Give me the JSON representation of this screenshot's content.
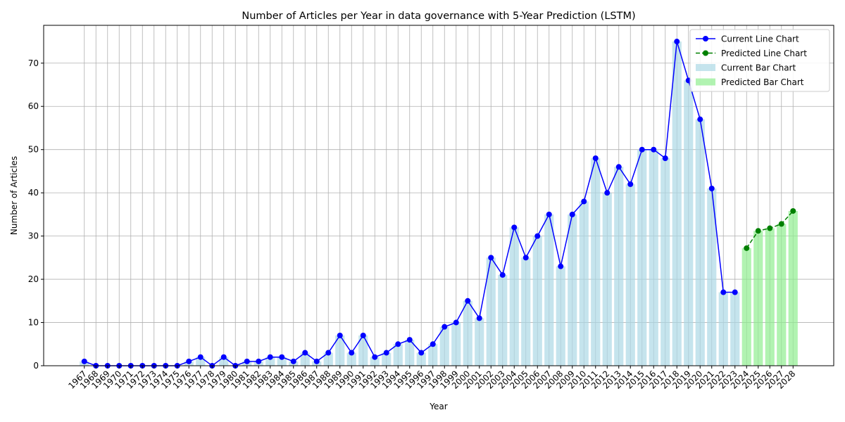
{
  "chart_data": {
    "type": "bar_line",
    "title": "Number of Articles per Year in data governance with 5-Year Prediction (LSTM)",
    "x_label": "Year",
    "y_label": "Number of Articles",
    "categories": [
      "1967",
      "1968",
      "1969",
      "1970",
      "1971",
      "1972",
      "1973",
      "1974",
      "1975",
      "1976",
      "1977",
      "1978",
      "1979",
      "1980",
      "1981",
      "1982",
      "1983",
      "1984",
      "1985",
      "1986",
      "1987",
      "1988",
      "1989",
      "1990",
      "1991",
      "1992",
      "1993",
      "1994",
      "1995",
      "1996",
      "1997",
      "1998",
      "1999",
      "2000",
      "2001",
      "2002",
      "2003",
      "2004",
      "2005",
      "2006",
      "2007",
      "2008",
      "2009",
      "2010",
      "2011",
      "2012",
      "2013",
      "2014",
      "2015",
      "2016",
      "2017",
      "2018",
      "2019",
      "2020",
      "2021",
      "2022",
      "2023",
      "2024",
      "2025",
      "2026",
      "2027",
      "2028"
    ],
    "series": [
      {
        "name": "Current Line Chart",
        "kind": "line",
        "color": "#0000ff",
        "dashed": false,
        "values": [
          1,
          0,
          0,
          0,
          0,
          0,
          0,
          0,
          0,
          1,
          2,
          0,
          2,
          0,
          1,
          1,
          2,
          2,
          1,
          3,
          1,
          3,
          7,
          3,
          7,
          2,
          3,
          5,
          6,
          3,
          5,
          9,
          10,
          15,
          11,
          25,
          21,
          32,
          25,
          30,
          35,
          23,
          35,
          38,
          48,
          40,
          46,
          42,
          50,
          50,
          48,
          75,
          66,
          57,
          41,
          17,
          17,
          null,
          null,
          null,
          null,
          null
        ]
      },
      {
        "name": "Predicted Line Chart",
        "kind": "line",
        "color": "#008000",
        "dashed": true,
        "values": [
          null,
          null,
          null,
          null,
          null,
          null,
          null,
          null,
          null,
          null,
          null,
          null,
          null,
          null,
          null,
          null,
          null,
          null,
          null,
          null,
          null,
          null,
          null,
          null,
          null,
          null,
          null,
          null,
          null,
          null,
          null,
          null,
          null,
          null,
          null,
          null,
          null,
          null,
          null,
          null,
          null,
          null,
          null,
          null,
          null,
          null,
          null,
          null,
          null,
          null,
          null,
          null,
          null,
          null,
          null,
          null,
          null,
          27.2,
          31.2,
          31.8,
          32.8,
          35.8
        ]
      },
      {
        "name": "Current Bar Chart",
        "kind": "bar",
        "color": "#add8e6",
        "values": [
          1,
          0,
          0,
          0,
          0,
          0,
          0,
          0,
          0,
          1,
          2,
          0,
          2,
          0,
          1,
          1,
          2,
          2,
          1,
          3,
          1,
          3,
          7,
          3,
          7,
          2,
          3,
          5,
          6,
          3,
          5,
          9,
          10,
          15,
          11,
          25,
          21,
          32,
          25,
          30,
          35,
          23,
          35,
          38,
          48,
          40,
          46,
          42,
          50,
          50,
          48,
          75,
          66,
          57,
          41,
          17,
          17,
          null,
          null,
          null,
          null,
          null
        ]
      },
      {
        "name": "Predicted Bar Chart",
        "kind": "bar",
        "color": "#90ee90",
        "values": [
          null,
          null,
          null,
          null,
          null,
          null,
          null,
          null,
          null,
          null,
          null,
          null,
          null,
          null,
          null,
          null,
          null,
          null,
          null,
          null,
          null,
          null,
          null,
          null,
          null,
          null,
          null,
          null,
          null,
          null,
          null,
          null,
          null,
          null,
          null,
          null,
          null,
          null,
          null,
          null,
          null,
          null,
          null,
          null,
          null,
          null,
          null,
          null,
          null,
          null,
          null,
          null,
          null,
          null,
          null,
          null,
          null,
          27.2,
          31.2,
          31.8,
          32.8,
          35.8
        ]
      }
    ],
    "ylim": [
      0,
      78.75
    ],
    "yticks": [
      0,
      10,
      20,
      30,
      40,
      50,
      60,
      70
    ],
    "grid": true,
    "legend": "upper right"
  }
}
